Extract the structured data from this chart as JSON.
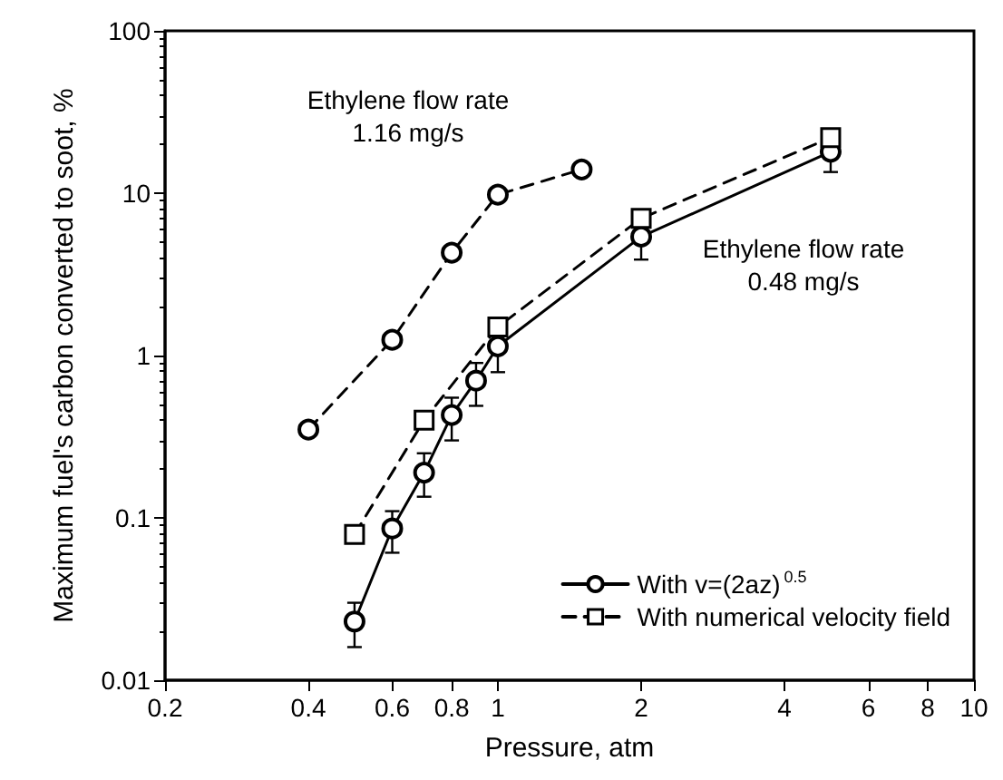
{
  "chart_data": {
    "type": "line",
    "xlabel": "Pressure, atm",
    "ylabel": "Maximum fuel's carbon converted to soot, %",
    "log": "xy",
    "xlim": [
      0.2,
      10
    ],
    "xticks": [
      0.2,
      0.4,
      0.6,
      0.8,
      1,
      2,
      4,
      6,
      8,
      10
    ],
    "ylim": [
      0.01,
      100
    ],
    "yticks": [
      0.01,
      0.1,
      1,
      10,
      100
    ],
    "grid": false,
    "legend": "bottom right",
    "series": [
      {
        "color": "#000000",
        "marker": "circle",
        "line_style": "dashed",
        "x": [
          0.4,
          0.6,
          0.8,
          1.0,
          1.5
        ],
        "values": [
          0.35,
          1.25,
          4.3,
          9.8,
          14
        ]
      },
      {
        "name": "With v=(2az)$^{0.5}$",
        "color": "#000000",
        "marker": "circle",
        "line_style": "solid",
        "x": [
          0.5,
          0.6,
          0.7,
          0.8,
          0.9,
          1.0,
          2,
          5
        ],
        "values": [
          0.023,
          0.086,
          0.19,
          0.43,
          0.7,
          1.14,
          5.4,
          18
        ],
        "errors": [
          [
            0.016,
            0.03
          ],
          [
            0.061,
            0.11
          ],
          [
            0.135,
            0.25
          ],
          [
            0.3,
            0.55
          ],
          [
            0.49,
            0.9
          ],
          [
            0.79,
            1.4
          ],
          [
            3.9,
            5.4
          ],
          [
            13.5,
            24
          ]
        ]
      },
      {
        "name": "With numerical velocity field",
        "color": "#000000",
        "marker": "square",
        "line_style": "dashed",
        "x": [
          0.5,
          0.7,
          1.0,
          2,
          5
        ],
        "values": [
          0.079,
          0.4,
          1.5,
          7.0,
          22
        ]
      }
    ],
    "annotations": [
      "Ethylene flow rate\n1.16 mg/s",
      "Ethylene flow rate\n0.48 mg/s"
    ]
  }
}
